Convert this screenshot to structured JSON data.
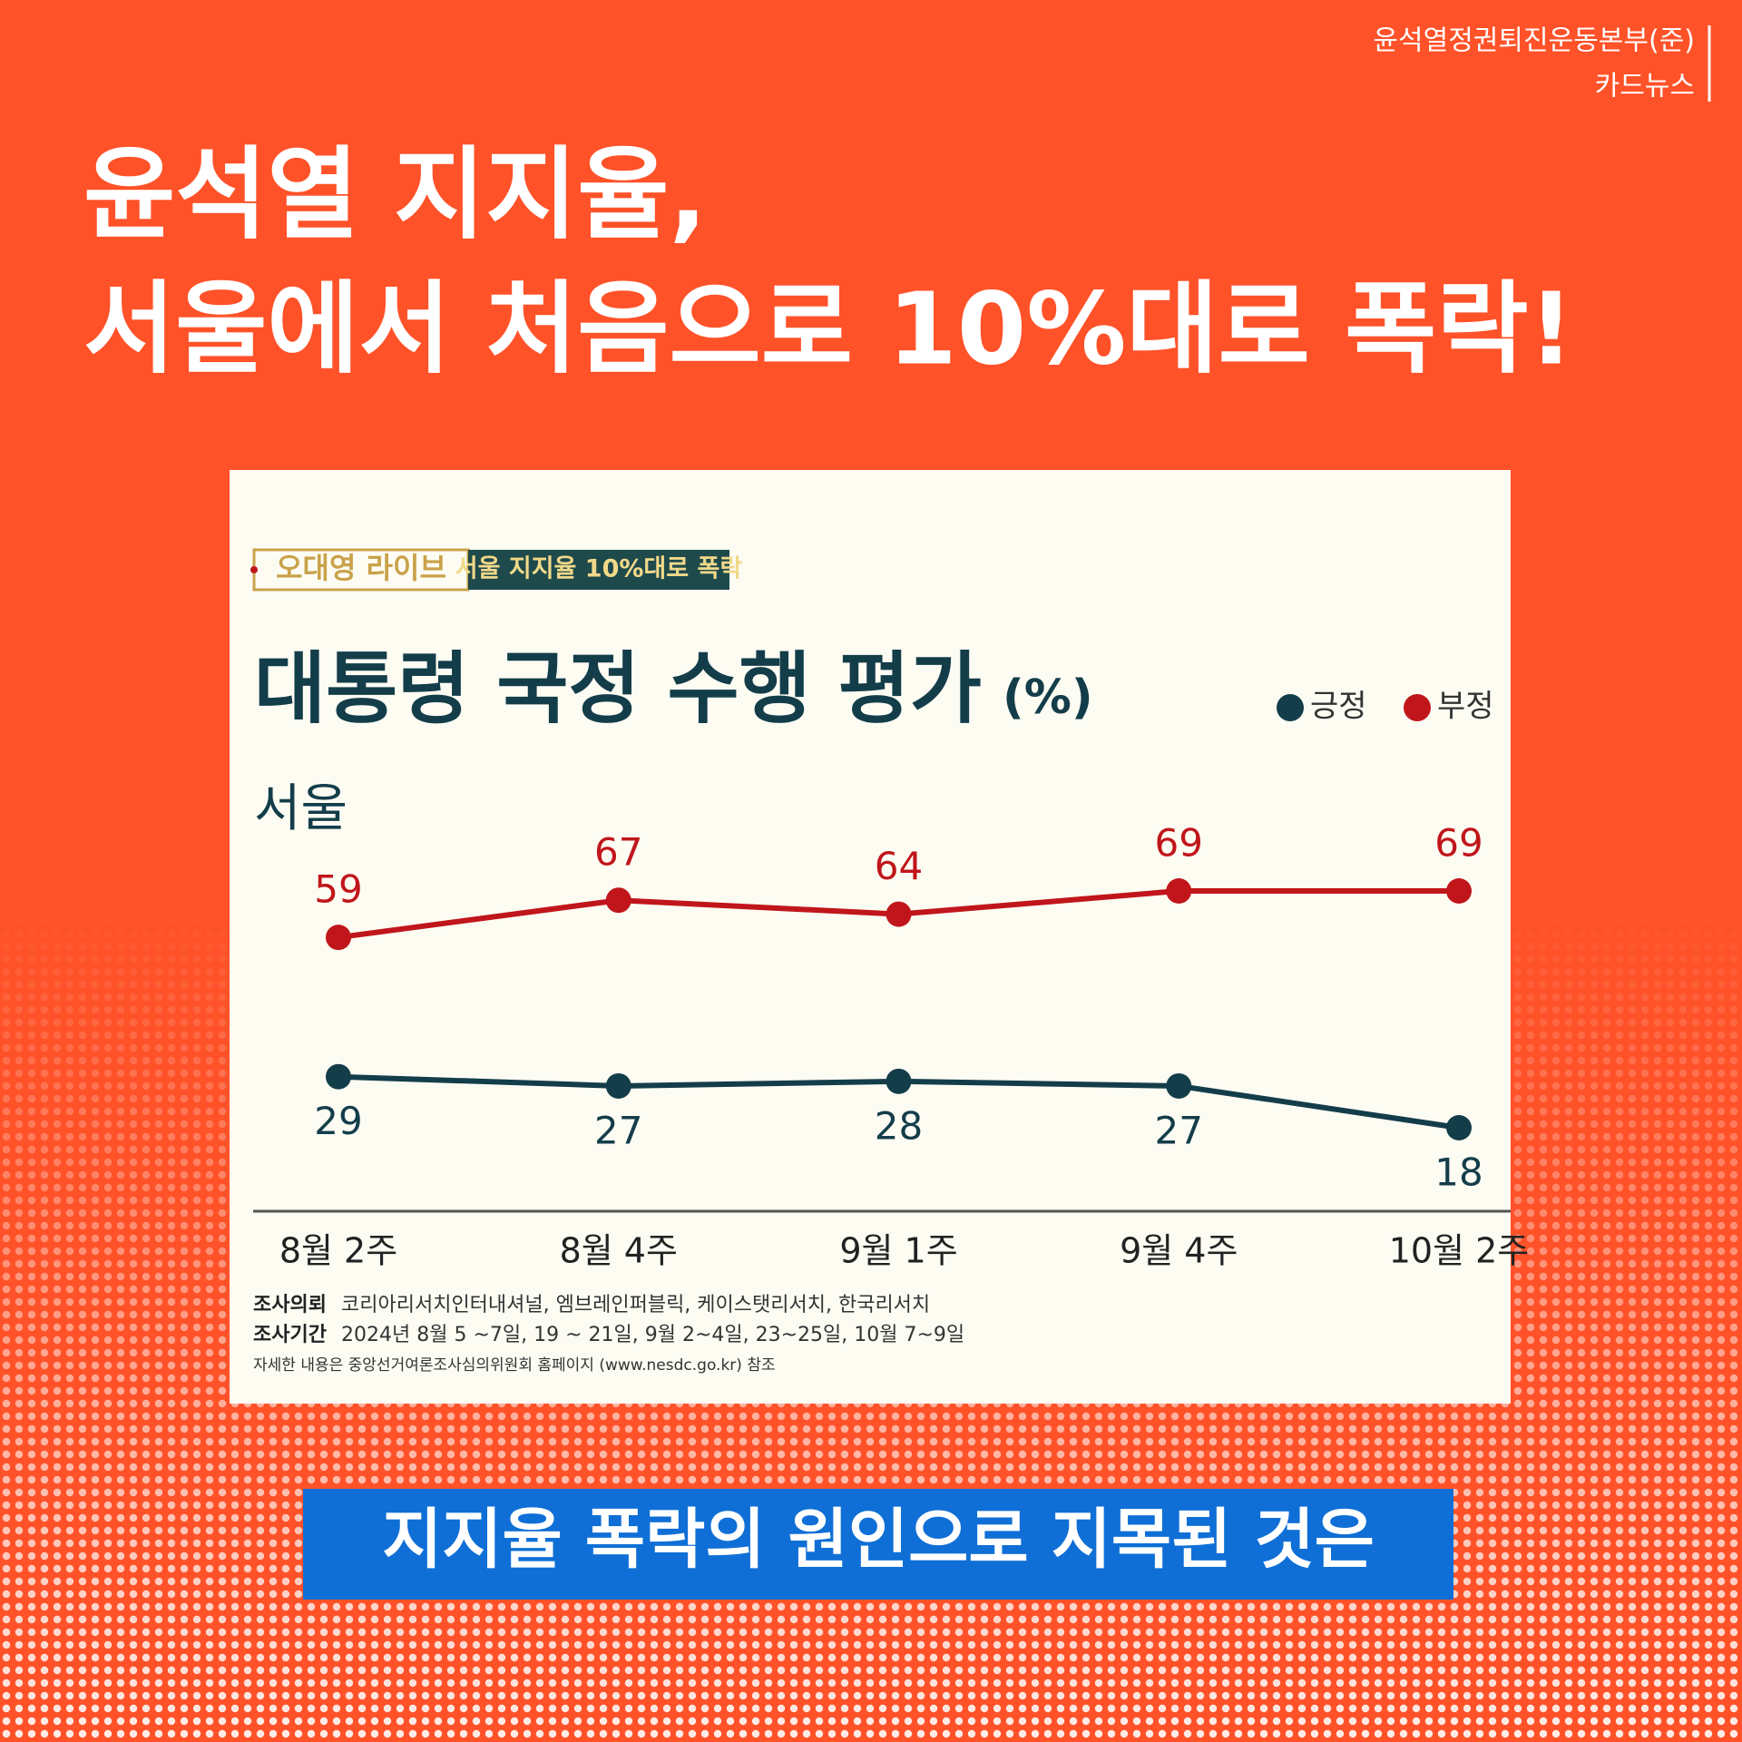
{
  "header": {
    "org": "윤석열정권퇴진운동본부(준)",
    "kind": "카드뉴스"
  },
  "headline": [
    "윤석열 지지율,",
    "서울에서 처음으로 10%대로 폭락!"
  ],
  "chart_data": {
    "type": "line",
    "badge": [
      "오대영 라이브",
      "서울 지지율 10%대로 폭락"
    ],
    "title": "대통령 국정 수행 평가",
    "unit": "(%)",
    "subtitle": "서울",
    "categories": [
      "8월 2주",
      "8월 4주",
      "9월 1주",
      "9월 4주",
      "10월 2주"
    ],
    "series": [
      {
        "name": "긍정",
        "color": "#143d4a",
        "values": [
          29,
          27,
          28,
          27,
          18
        ]
      },
      {
        "name": "부정",
        "color": "#c0161b",
        "values": [
          59,
          67,
          64,
          69,
          69
        ]
      }
    ],
    "legend": "top-right",
    "notes": [
      {
        "label": "조사의뢰",
        "text": "코리아리서치인터내셔널, 엠브레인퍼블릭, 케이스탯리서치, 한국리서치"
      },
      {
        "label": "조사기간",
        "text": "2024년 8월  5 ~7일,  19 ~ 21일, 9월 2~4일, 23~25일, 10월 7~9일"
      },
      {
        "text": "자세한 내용은 중앙선거여론조사심의위원회 홈페이지 (www.nesdc.go.kr) 참조"
      }
    ]
  },
  "caption": "지지율 폭락의 원인으로 지목된 것은"
}
